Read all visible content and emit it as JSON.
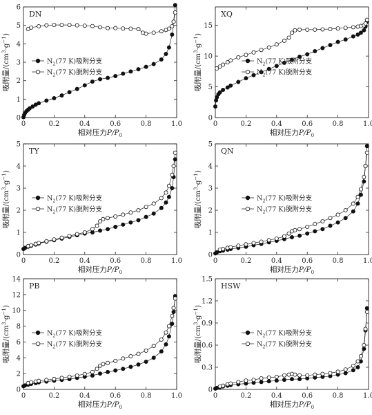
{
  "chart_data": [
    {
      "id": "DN",
      "type": "scatter",
      "panel_label": "DN",
      "xlabel_prefix": "相对压力",
      "xlabel_var": "P/P",
      "xlabel_sub": "0",
      "ylabel_prefix": "吸附量/(cm",
      "ylabel_sup1": "3",
      "ylabel_mid": "·g",
      "ylabel_sup2": "−1",
      "ylabel_suffix": ")",
      "xlim": [
        0,
        1.0
      ],
      "ylim": [
        0,
        6
      ],
      "xticks": [
        "0",
        "0.2",
        "0.4",
        "0.6",
        "0.8",
        "1.0"
      ],
      "xtick_values": [
        0,
        0.2,
        0.4,
        0.6,
        0.8,
        1.0
      ],
      "yticks": [
        "0",
        "1",
        "2",
        "3",
        "4",
        "5",
        "6"
      ],
      "ytick_values": [
        0,
        1,
        2,
        3,
        4,
        5,
        6
      ],
      "legend_position": "center-left",
      "series": [
        {
          "name_pre": "N",
          "name_sub": "2",
          "name_post": "(77 K)吸附分支",
          "marker": "filled",
          "x": [
            0.0,
            0.005,
            0.01,
            0.02,
            0.03,
            0.04,
            0.06,
            0.08,
            0.1,
            0.15,
            0.2,
            0.25,
            0.3,
            0.35,
            0.4,
            0.45,
            0.5,
            0.55,
            0.6,
            0.65,
            0.7,
            0.75,
            0.8,
            0.85,
            0.9,
            0.93,
            0.95,
            0.97,
            0.98,
            0.99
          ],
          "y": [
            0.02,
            0.15,
            0.25,
            0.35,
            0.42,
            0.5,
            0.6,
            0.7,
            0.78,
            0.92,
            1.05,
            1.2,
            1.38,
            1.55,
            1.75,
            1.95,
            2.08,
            2.15,
            2.25,
            2.38,
            2.5,
            2.62,
            2.75,
            2.9,
            3.15,
            3.45,
            3.8,
            4.5,
            5.2,
            6.1
          ]
        },
        {
          "name_pre": "N",
          "name_sub": "2",
          "name_post": "(77 K)脱附分支",
          "marker": "open",
          "x": [
            0.03,
            0.05,
            0.1,
            0.15,
            0.2,
            0.25,
            0.3,
            0.35,
            0.4,
            0.45,
            0.5,
            0.55,
            0.6,
            0.65,
            0.7,
            0.75,
            0.78,
            0.8,
            0.85,
            0.9,
            0.93,
            0.95,
            0.97,
            0.98,
            0.99
          ],
          "y": [
            4.8,
            4.88,
            4.95,
            5.0,
            5.02,
            5.02,
            5.02,
            5.0,
            4.98,
            4.96,
            4.9,
            4.85,
            4.85,
            4.83,
            4.82,
            4.8,
            4.6,
            4.55,
            4.6,
            4.68,
            4.75,
            4.82,
            4.95,
            5.2,
            5.7
          ]
        }
      ]
    },
    {
      "id": "XQ",
      "type": "scatter",
      "panel_label": "XQ",
      "xlabel_prefix": "相对压力",
      "xlabel_var": "P/P",
      "xlabel_sub": "0",
      "ylabel_prefix": "吸附量/(cm",
      "ylabel_sup1": "3",
      "ylabel_mid": "·g",
      "ylabel_sup2": "−1",
      "ylabel_suffix": ")",
      "xlim": [
        0,
        1.0
      ],
      "ylim": [
        0,
        18
      ],
      "xticks": [
        "0",
        "0.2",
        "0.4",
        "0.6",
        "0.8",
        "1.0"
      ],
      "xtick_values": [
        0,
        0.2,
        0.4,
        0.6,
        0.8,
        1.0
      ],
      "yticks": [
        "0",
        "5",
        "10",
        "15"
      ],
      "ytick_values": [
        0,
        5,
        10,
        15
      ],
      "legend_position": "center-right",
      "series": [
        {
          "name_pre": "N",
          "name_sub": "2",
          "name_post": "(77 K)吸附分支",
          "marker": "filled",
          "x": [
            0.0,
            0.005,
            0.01,
            0.02,
            0.03,
            0.05,
            0.08,
            0.1,
            0.15,
            0.2,
            0.25,
            0.3,
            0.35,
            0.4,
            0.45,
            0.5,
            0.55,
            0.6,
            0.65,
            0.7,
            0.75,
            0.8,
            0.85,
            0.9,
            0.93,
            0.95,
            0.97,
            0.98,
            0.99
          ],
          "y": [
            1.8,
            2.8,
            3.3,
            3.8,
            4.1,
            4.5,
            4.9,
            5.2,
            5.8,
            6.4,
            6.9,
            7.4,
            7.9,
            8.4,
            8.9,
            9.4,
            9.9,
            10.3,
            10.8,
            11.3,
            11.8,
            12.3,
            12.7,
            13.2,
            13.5,
            13.8,
            14.2,
            14.8,
            15.6
          ]
        },
        {
          "name_pre": "N",
          "name_sub": "2",
          "name_post": "(77 K)脱附分支",
          "marker": "open",
          "x": [
            0.01,
            0.03,
            0.05,
            0.08,
            0.1,
            0.15,
            0.2,
            0.25,
            0.3,
            0.35,
            0.4,
            0.45,
            0.48,
            0.5,
            0.52,
            0.55,
            0.6,
            0.65,
            0.7,
            0.75,
            0.8,
            0.85,
            0.9,
            0.93,
            0.95,
            0.97,
            0.98,
            0.99
          ],
          "y": [
            8.0,
            8.3,
            8.6,
            9.0,
            9.3,
            9.8,
            10.2,
            10.6,
            11.0,
            11.4,
            11.9,
            12.5,
            13.0,
            13.8,
            14.2,
            14.3,
            14.3,
            14.3,
            14.35,
            14.4,
            14.5,
            14.6,
            14.7,
            14.8,
            14.9,
            15.0,
            15.3,
            15.9
          ]
        }
      ]
    },
    {
      "id": "TY",
      "type": "scatter",
      "panel_label": "TY",
      "xlabel_prefix": "相对压力",
      "xlabel_var": "P/P",
      "xlabel_sub": "0",
      "ylabel_prefix": "吸附量/(cm",
      "ylabel_sup1": "3",
      "ylabel_mid": "·g",
      "ylabel_sup2": "−1",
      "ylabel_suffix": ")",
      "xlim": [
        0,
        1.0
      ],
      "ylim": [
        0,
        5
      ],
      "xticks": [
        "0",
        "0.2",
        "0.4",
        "0.6",
        "0.8",
        "1.0"
      ],
      "xtick_values": [
        0,
        0.2,
        0.4,
        0.6,
        0.8,
        1.0
      ],
      "yticks": [
        "0",
        "1",
        "2",
        "3",
        "4",
        "5"
      ],
      "ytick_values": [
        0,
        1,
        2,
        3,
        4,
        5
      ],
      "legend_position": "center-left",
      "series": [
        {
          "name_pre": "N",
          "name_sub": "2",
          "name_post": "(77 K)吸附分支",
          "marker": "filled",
          "x": [
            0.0,
            0.01,
            0.03,
            0.05,
            0.08,
            0.1,
            0.15,
            0.2,
            0.25,
            0.3,
            0.35,
            0.4,
            0.45,
            0.5,
            0.55,
            0.6,
            0.65,
            0.7,
            0.75,
            0.8,
            0.85,
            0.9,
            0.93,
            0.95,
            0.97,
            0.98,
            0.99
          ],
          "y": [
            0.25,
            0.3,
            0.35,
            0.4,
            0.45,
            0.5,
            0.58,
            0.65,
            0.72,
            0.8,
            0.87,
            0.95,
            1.0,
            1.08,
            1.15,
            1.25,
            1.35,
            1.45,
            1.55,
            1.7,
            1.85,
            2.1,
            2.35,
            2.6,
            3.0,
            3.5,
            4.3
          ]
        },
        {
          "name_pre": "N",
          "name_sub": "2",
          "name_post": "(77 K)脱附分支",
          "marker": "open",
          "x": [
            0.03,
            0.05,
            0.08,
            0.1,
            0.15,
            0.2,
            0.25,
            0.3,
            0.35,
            0.4,
            0.45,
            0.48,
            0.5,
            0.52,
            0.55,
            0.6,
            0.65,
            0.7,
            0.75,
            0.8,
            0.85,
            0.9,
            0.93,
            0.95,
            0.97,
            0.98,
            0.99
          ],
          "y": [
            0.38,
            0.42,
            0.48,
            0.52,
            0.6,
            0.68,
            0.76,
            0.84,
            0.92,
            1.0,
            1.15,
            1.3,
            1.5,
            1.6,
            1.65,
            1.72,
            1.8,
            1.9,
            2.0,
            2.15,
            2.3,
            2.55,
            2.8,
            3.1,
            3.6,
            4.0,
            4.6
          ]
        }
      ]
    },
    {
      "id": "QN",
      "type": "scatter",
      "panel_label": "QN",
      "xlabel_prefix": "相对压力",
      "xlabel_var": "P/P",
      "xlabel_sub": "0",
      "ylabel_prefix": "吸附量/(cm",
      "ylabel_sup1": "3",
      "ylabel_mid": "·g",
      "ylabel_sup2": "−1",
      "ylabel_suffix": ")",
      "xlim": [
        0,
        1.0
      ],
      "ylim": [
        0,
        5
      ],
      "xticks": [
        "0",
        "0.2",
        "0.4",
        "0.6",
        "0.8",
        "1.0"
      ],
      "xtick_values": [
        0,
        0.2,
        0.4,
        0.6,
        0.8,
        1.0
      ],
      "yticks": [
        "0",
        "1",
        "2",
        "3",
        "4",
        "5"
      ],
      "ytick_values": [
        0,
        1,
        2,
        3,
        4,
        5
      ],
      "legend_position": "center-right",
      "series": [
        {
          "name_pre": "N",
          "name_sub": "2",
          "name_post": "(77 K)吸附分支",
          "marker": "filled",
          "x": [
            0.0,
            0.01,
            0.03,
            0.05,
            0.08,
            0.1,
            0.15,
            0.2,
            0.25,
            0.3,
            0.35,
            0.4,
            0.45,
            0.5,
            0.55,
            0.6,
            0.65,
            0.7,
            0.75,
            0.8,
            0.85,
            0.9,
            0.93,
            0.95,
            0.97,
            0.98,
            0.99
          ],
          "y": [
            0.05,
            0.1,
            0.15,
            0.18,
            0.22,
            0.25,
            0.3,
            0.35,
            0.42,
            0.48,
            0.55,
            0.62,
            0.7,
            0.78,
            0.85,
            0.95,
            1.05,
            1.15,
            1.3,
            1.45,
            1.65,
            1.95,
            2.3,
            2.7,
            3.3,
            4.0,
            4.9
          ]
        },
        {
          "name_pre": "N",
          "name_sub": "2",
          "name_post": "(77 K)脱附分支",
          "marker": "open",
          "x": [
            0.03,
            0.05,
            0.08,
            0.1,
            0.15,
            0.2,
            0.25,
            0.3,
            0.35,
            0.4,
            0.45,
            0.48,
            0.5,
            0.52,
            0.55,
            0.6,
            0.65,
            0.7,
            0.75,
            0.8,
            0.85,
            0.9,
            0.93,
            0.95,
            0.97,
            0.98,
            0.99
          ],
          "y": [
            0.22,
            0.25,
            0.3,
            0.33,
            0.4,
            0.46,
            0.52,
            0.58,
            0.65,
            0.72,
            0.82,
            0.95,
            1.05,
            1.1,
            1.15,
            1.25,
            1.38,
            1.5,
            1.65,
            1.8,
            2.0,
            2.3,
            2.6,
            2.95,
            3.5,
            4.0,
            4.6
          ]
        }
      ]
    },
    {
      "id": "PB",
      "type": "scatter",
      "panel_label": "PB",
      "xlabel_prefix": "相对压力",
      "xlabel_var": "P/P",
      "xlabel_sub": "0",
      "ylabel_prefix": "吸附量/(cm",
      "ylabel_sup1": "3",
      "ylabel_mid": "·g",
      "ylabel_sup2": "−1",
      "ylabel_suffix": ")",
      "xlim": [
        0,
        1.0
      ],
      "ylim": [
        0,
        14
      ],
      "xticks": [
        "0",
        "0.2",
        "0.4",
        "0.6",
        "0.8",
        "1.0"
      ],
      "xtick_values": [
        0,
        0.2,
        0.4,
        0.6,
        0.8,
        1.0
      ],
      "yticks": [
        "0",
        "2",
        "4",
        "6",
        "8",
        "10",
        "12",
        "14"
      ],
      "ytick_values": [
        0,
        2,
        4,
        6,
        8,
        10,
        12,
        14
      ],
      "legend_position": "center-left",
      "series": [
        {
          "name_pre": "N",
          "name_sub": "2",
          "name_post": "(77 K)吸附分支",
          "marker": "filled",
          "x": [
            0.0,
            0.01,
            0.03,
            0.05,
            0.08,
            0.1,
            0.15,
            0.2,
            0.25,
            0.3,
            0.35,
            0.4,
            0.45,
            0.5,
            0.55,
            0.6,
            0.65,
            0.7,
            0.75,
            0.8,
            0.85,
            0.9,
            0.93,
            0.95,
            0.97,
            0.98,
            0.99
          ],
          "y": [
            0.4,
            0.5,
            0.6,
            0.7,
            0.8,
            0.9,
            1.0,
            1.1,
            1.2,
            1.3,
            1.45,
            1.6,
            1.75,
            2.0,
            2.2,
            2.4,
            2.6,
            2.85,
            3.15,
            3.5,
            4.0,
            4.8,
            5.7,
            6.7,
            8.3,
            9.8,
            11.8
          ]
        },
        {
          "name_pre": "N",
          "name_sub": "2",
          "name_post": "(77 K)脱附分支",
          "marker": "open",
          "x": [
            0.03,
            0.05,
            0.08,
            0.1,
            0.15,
            0.2,
            0.25,
            0.3,
            0.35,
            0.4,
            0.45,
            0.48,
            0.5,
            0.52,
            0.55,
            0.6,
            0.65,
            0.7,
            0.75,
            0.8,
            0.85,
            0.9,
            0.93,
            0.95,
            0.97,
            0.98,
            0.99
          ],
          "y": [
            0.8,
            0.9,
            1.0,
            1.08,
            1.2,
            1.32,
            1.45,
            1.6,
            1.75,
            1.95,
            2.2,
            2.6,
            3.0,
            3.2,
            3.35,
            3.6,
            3.9,
            4.2,
            4.5,
            4.9,
            5.5,
            6.3,
            7.2,
            8.0,
            9.3,
            10.3,
            11.5
          ]
        }
      ]
    },
    {
      "id": "HSW",
      "type": "scatter",
      "panel_label": "HSW",
      "xlabel_prefix": "相对压力",
      "xlabel_var": "P/P",
      "xlabel_sub": "0",
      "ylabel_prefix": "吸附量/(cm",
      "ylabel_sup1": "3",
      "ylabel_mid": "·g",
      "ylabel_sup2": "−1",
      "ylabel_suffix": ")",
      "xlim": [
        0,
        1.0
      ],
      "ylim": [
        0,
        1.5
      ],
      "xticks": [
        "0",
        "0.2",
        "0.4",
        "0.6",
        "0.8",
        "1.0"
      ],
      "xtick_values": [
        0,
        0.2,
        0.4,
        0.6,
        0.8,
        1.0
      ],
      "yticks": [
        "0",
        "0.3",
        "0.6",
        "0.9",
        "1.2",
        "1.5"
      ],
      "ytick_values": [
        0,
        0.3,
        0.6,
        0.9,
        1.2,
        1.5
      ],
      "legend_position": "center-right",
      "series": [
        {
          "name_pre": "N",
          "name_sub": "2",
          "name_post": "(77 K)吸附分支",
          "marker": "filled",
          "x": [
            0.0,
            0.01,
            0.03,
            0.05,
            0.08,
            0.1,
            0.15,
            0.2,
            0.25,
            0.3,
            0.35,
            0.4,
            0.45,
            0.5,
            0.55,
            0.6,
            0.65,
            0.7,
            0.75,
            0.8,
            0.85,
            0.9,
            0.93,
            0.95,
            0.97,
            0.98,
            0.99
          ],
          "y": [
            0.01,
            0.02,
            0.03,
            0.04,
            0.05,
            0.06,
            0.07,
            0.08,
            0.09,
            0.1,
            0.11,
            0.12,
            0.13,
            0.14,
            0.14,
            0.15,
            0.16,
            0.17,
            0.18,
            0.2,
            0.22,
            0.26,
            0.3,
            0.38,
            0.55,
            0.8,
            1.1
          ]
        },
        {
          "name_pre": "N",
          "name_sub": "2",
          "name_post": "(77 K)脱附分支",
          "marker": "open",
          "x": [
            0.03,
            0.05,
            0.08,
            0.1,
            0.15,
            0.2,
            0.25,
            0.3,
            0.35,
            0.4,
            0.45,
            0.48,
            0.5,
            0.52,
            0.55,
            0.6,
            0.65,
            0.7,
            0.75,
            0.8,
            0.85,
            0.9,
            0.93,
            0.95,
            0.97,
            0.98,
            0.99
          ],
          "y": [
            0.04,
            0.05,
            0.07,
            0.08,
            0.1,
            0.12,
            0.13,
            0.15,
            0.16,
            0.17,
            0.19,
            0.2,
            0.21,
            0.2,
            0.19,
            0.19,
            0.2,
            0.21,
            0.22,
            0.24,
            0.27,
            0.32,
            0.38,
            0.45,
            0.6,
            0.82,
            1.05
          ]
        }
      ]
    }
  ]
}
